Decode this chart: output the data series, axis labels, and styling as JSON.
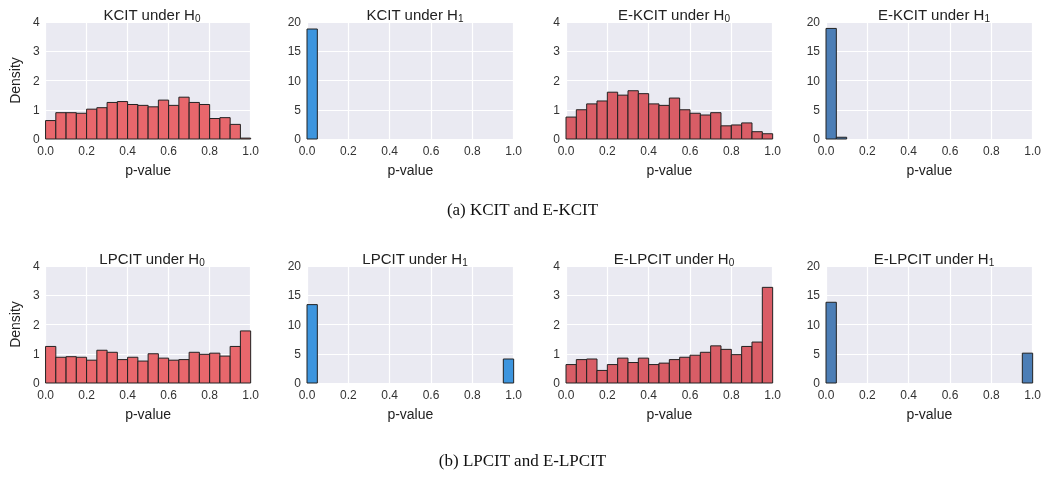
{
  "chart_data": [
    {
      "type": "histogram",
      "title": "KCIT under H$_{0}$",
      "xlabel": "p-value",
      "ylabel": "Density",
      "color": "#e8676c",
      "bins": [
        0,
        0.05,
        0.1,
        0.15,
        0.2,
        0.25,
        0.3,
        0.35,
        0.4,
        0.45,
        0.5,
        0.55,
        0.6,
        0.65,
        0.7,
        0.75,
        0.8,
        0.85,
        0.9,
        0.95,
        1
      ],
      "values": [
        0.63,
        0.9,
        0.9,
        0.88,
        1.02,
        1.07,
        1.25,
        1.28,
        1.18,
        1.15,
        1.1,
        1.33,
        1.15,
        1.43,
        1.25,
        1.18,
        0.7,
        0.73,
        0.5,
        0.03
      ],
      "xlim": [
        0,
        1
      ],
      "ylim": [
        0,
        4
      ],
      "xticks": [
        {
          "value": 0,
          "label": "0.0"
        },
        {
          "value": 0.2,
          "label": "0.2"
        },
        {
          "value": 0.4,
          "label": "0.4"
        },
        {
          "value": 0.6,
          "label": "0.6"
        },
        {
          "value": 0.8,
          "label": "0.8"
        },
        {
          "value": 1,
          "label": "1.0"
        }
      ],
      "yticks": [
        0,
        1,
        2,
        3,
        4
      ],
      "grid": true,
      "annotations": [
        "(a) KCIT and E-KCIT"
      ]
    },
    {
      "type": "histogram",
      "title": "KCIT under H$_{1}$",
      "xlabel": "p-value",
      "color": "#3d95de",
      "bins": [
        0,
        0.05,
        0.1,
        0.15,
        0.2,
        0.25,
        0.3,
        0.35,
        0.4,
        0.45,
        0.5,
        0.55,
        0.6,
        0.65,
        0.7,
        0.75,
        0.8,
        0.85,
        0.9,
        0.95,
        1
      ],
      "values": [
        18.8,
        0,
        0,
        0,
        0,
        0,
        0,
        0,
        0,
        0,
        0,
        0,
        0,
        0,
        0,
        0,
        0,
        0,
        0,
        0
      ],
      "xlim": [
        0,
        1
      ],
      "ylim": [
        0,
        20
      ],
      "xticks": [
        {
          "value": 0,
          "label": "0.0"
        },
        {
          "value": 0.2,
          "label": "0.2"
        },
        {
          "value": 0.4,
          "label": "0.4"
        },
        {
          "value": 0.6,
          "label": "0.6"
        },
        {
          "value": 0.8,
          "label": "0.8"
        },
        {
          "value": 1,
          "label": "1.0"
        }
      ],
      "yticks": [
        0,
        5,
        10,
        15,
        20
      ],
      "grid": true
    },
    {
      "type": "histogram",
      "title": "E-KCIT under H$_{0}$",
      "xlabel": "p-value",
      "color": "#d95d66",
      "bins": [
        0,
        0.05,
        0.1,
        0.15,
        0.2,
        0.25,
        0.3,
        0.35,
        0.4,
        0.45,
        0.5,
        0.55,
        0.6,
        0.65,
        0.7,
        0.75,
        0.8,
        0.85,
        0.9,
        0.95,
        1
      ],
      "values": [
        0.75,
        1.0,
        1.2,
        1.3,
        1.6,
        1.5,
        1.65,
        1.55,
        1.2,
        1.15,
        1.4,
        1.0,
        0.88,
        0.82,
        0.9,
        0.45,
        0.48,
        0.55,
        0.25,
        0.18
      ],
      "xlim": [
        0,
        1
      ],
      "ylim": [
        0,
        4
      ],
      "xticks": [
        {
          "value": 0,
          "label": "0.0"
        },
        {
          "value": 0.2,
          "label": "0.2"
        },
        {
          "value": 0.4,
          "label": "0.4"
        },
        {
          "value": 0.6,
          "label": "0.6"
        },
        {
          "value": 0.8,
          "label": "0.8"
        },
        {
          "value": 1,
          "label": "1.0"
        }
      ],
      "yticks": [
        0,
        1,
        2,
        3,
        4
      ],
      "grid": true
    },
    {
      "type": "histogram",
      "title": "E-KCIT under H$_{1}$",
      "xlabel": "p-value",
      "color": "#4c7eb6",
      "bins": [
        0,
        0.05,
        0.1,
        0.15,
        0.2,
        0.25,
        0.3,
        0.35,
        0.4,
        0.45,
        0.5,
        0.55,
        0.6,
        0.65,
        0.7,
        0.75,
        0.8,
        0.85,
        0.9,
        0.95,
        1
      ],
      "values": [
        18.9,
        0.3,
        0,
        0,
        0,
        0,
        0,
        0,
        0,
        0,
        0,
        0,
        0,
        0,
        0,
        0,
        0,
        0,
        0,
        0
      ],
      "xlim": [
        0,
        1
      ],
      "ylim": [
        0,
        20
      ],
      "xticks": [
        {
          "value": 0,
          "label": "0.0"
        },
        {
          "value": 0.2,
          "label": "0.2"
        },
        {
          "value": 0.4,
          "label": "0.4"
        },
        {
          "value": 0.6,
          "label": "0.6"
        },
        {
          "value": 0.8,
          "label": "0.8"
        },
        {
          "value": 1,
          "label": "1.0"
        }
      ],
      "yticks": [
        0,
        5,
        10,
        15,
        20
      ],
      "grid": true
    },
    {
      "type": "histogram",
      "title": "LPCIT under H$_{0}$",
      "xlabel": "p-value",
      "ylabel": "Density",
      "color": "#e8676c",
      "bins": [
        0,
        0.05,
        0.1,
        0.15,
        0.2,
        0.25,
        0.3,
        0.35,
        0.4,
        0.45,
        0.5,
        0.55,
        0.6,
        0.65,
        0.7,
        0.75,
        0.8,
        0.85,
        0.9,
        0.95,
        1
      ],
      "values": [
        1.25,
        0.88,
        0.9,
        0.88,
        0.78,
        1.12,
        1.05,
        0.8,
        0.88,
        0.75,
        1.0,
        0.85,
        0.78,
        0.8,
        1.05,
        0.98,
        1.02,
        0.92,
        1.25,
        1.78
      ],
      "xlim": [
        0,
        1
      ],
      "ylim": [
        0,
        4
      ],
      "xticks": [
        {
          "value": 0,
          "label": "0.0"
        },
        {
          "value": 0.2,
          "label": "0.2"
        },
        {
          "value": 0.4,
          "label": "0.4"
        },
        {
          "value": 0.6,
          "label": "0.6"
        },
        {
          "value": 0.8,
          "label": "0.8"
        },
        {
          "value": 1,
          "label": "1.0"
        }
      ],
      "yticks": [
        0,
        1,
        2,
        3,
        4
      ],
      "grid": true,
      "annotations": [
        "(b) LPCIT and E-LPCIT"
      ]
    },
    {
      "type": "histogram",
      "title": "LPCIT under H$_{1}$",
      "xlabel": "p-value",
      "color": "#3d95de",
      "bins": [
        0,
        0.05,
        0.1,
        0.15,
        0.2,
        0.25,
        0.3,
        0.35,
        0.4,
        0.45,
        0.5,
        0.55,
        0.6,
        0.65,
        0.7,
        0.75,
        0.8,
        0.85,
        0.9,
        0.95,
        1
      ],
      "values": [
        13.4,
        0,
        0,
        0,
        0,
        0,
        0,
        0,
        0,
        0,
        0,
        0,
        0,
        0,
        0,
        0,
        0,
        0,
        0,
        4.1
      ],
      "xlim": [
        0,
        1
      ],
      "ylim": [
        0,
        20
      ],
      "xticks": [
        {
          "value": 0,
          "label": "0.0"
        },
        {
          "value": 0.2,
          "label": "0.2"
        },
        {
          "value": 0.4,
          "label": "0.4"
        },
        {
          "value": 0.6,
          "label": "0.6"
        },
        {
          "value": 0.8,
          "label": "0.8"
        },
        {
          "value": 1,
          "label": "1.0"
        }
      ],
      "yticks": [
        0,
        5,
        10,
        15,
        20
      ],
      "grid": true
    },
    {
      "type": "histogram",
      "title": "E-LPCIT under H$_{0}$",
      "xlabel": "p-value",
      "color": "#d95d66",
      "bins": [
        0,
        0.05,
        0.1,
        0.15,
        0.2,
        0.25,
        0.3,
        0.35,
        0.4,
        0.45,
        0.5,
        0.55,
        0.6,
        0.65,
        0.7,
        0.75,
        0.8,
        0.85,
        0.9,
        0.95,
        1
      ],
      "values": [
        0.63,
        0.8,
        0.82,
        0.43,
        0.63,
        0.85,
        0.7,
        0.85,
        0.63,
        0.68,
        0.8,
        0.88,
        0.95,
        1.05,
        1.27,
        1.15,
        0.97,
        1.25,
        1.4,
        3.27
      ],
      "xlim": [
        0,
        1
      ],
      "ylim": [
        0,
        4
      ],
      "xticks": [
        {
          "value": 0,
          "label": "0.0"
        },
        {
          "value": 0.2,
          "label": "0.2"
        },
        {
          "value": 0.4,
          "label": "0.4"
        },
        {
          "value": 0.6,
          "label": "0.6"
        },
        {
          "value": 0.8,
          "label": "0.8"
        },
        {
          "value": 1,
          "label": "1.0"
        }
      ],
      "yticks": [
        0,
        1,
        2,
        3,
        4
      ],
      "grid": true
    },
    {
      "type": "histogram",
      "title": "E-LPCIT under H$_{1}$",
      "xlabel": "p-value",
      "color": "#4c7eb6",
      "bins": [
        0,
        0.05,
        0.1,
        0.15,
        0.2,
        0.25,
        0.3,
        0.35,
        0.4,
        0.45,
        0.5,
        0.55,
        0.6,
        0.65,
        0.7,
        0.75,
        0.8,
        0.85,
        0.9,
        0.95,
        1
      ],
      "values": [
        13.8,
        0,
        0,
        0,
        0,
        0,
        0,
        0,
        0,
        0,
        0,
        0,
        0,
        0,
        0,
        0,
        0,
        0,
        0,
        5.1
      ],
      "xlim": [
        0,
        1
      ],
      "ylim": [
        0,
        20
      ],
      "xticks": [
        {
          "value": 0,
          "label": "0.0"
        },
        {
          "value": 0.2,
          "label": "0.2"
        },
        {
          "value": 0.4,
          "label": "0.4"
        },
        {
          "value": 0.6,
          "label": "0.6"
        },
        {
          "value": 0.8,
          "label": "0.8"
        },
        {
          "value": 1,
          "label": "1.0"
        }
      ],
      "yticks": [
        0,
        5,
        10,
        15,
        20
      ],
      "grid": true
    }
  ]
}
